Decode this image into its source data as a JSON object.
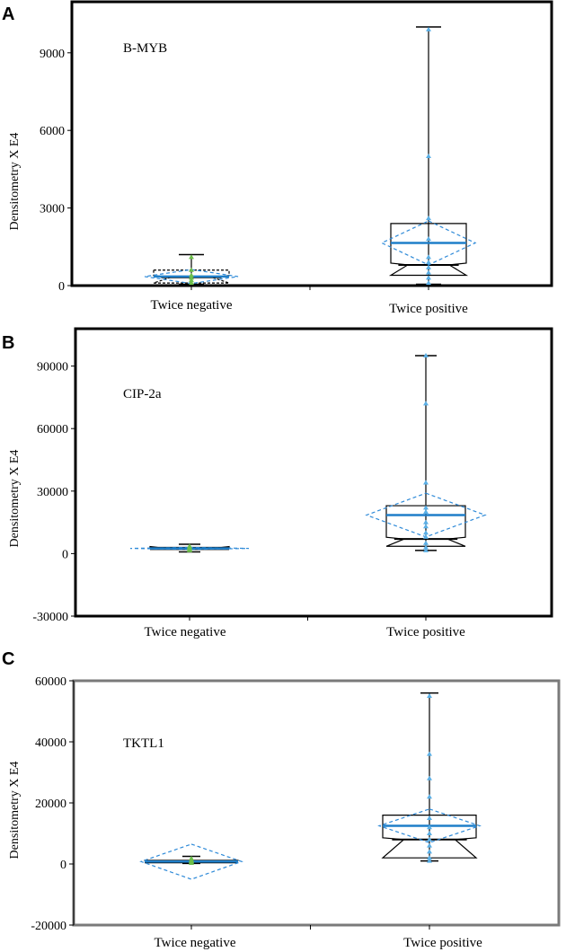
{
  "colors": {
    "box": "#000000",
    "mean": "#1f7fc9",
    "diamond": "#2e8ad8",
    "pos_points": "#5aafe6",
    "neg_points": "#6cbf4a"
  },
  "chart_data": [
    {
      "type": "boxplot",
      "panel": "A",
      "annotation": "B-MYB",
      "ylabel": "Densitometry X E4",
      "ylim": [
        0,
        10000
      ],
      "yticks": [
        0,
        3000,
        6000,
        9000
      ],
      "ytick_labels": [
        "0",
        "3000",
        "6000",
        "9000"
      ],
      "categories": [
        "Twice negative",
        "Twice positive"
      ],
      "groups": [
        {
          "name": "Twice negative",
          "min": 50,
          "q1": 100,
          "median": 320,
          "q3": 600,
          "max": 1200,
          "mean": 350,
          "ci_low": 80,
          "ci_high": 620,
          "points": [
            100,
            200,
            300,
            400,
            600,
            1100
          ]
        },
        {
          "name": "Twice positive",
          "min": 50,
          "q1": 400,
          "median": 800,
          "q3": 2400,
          "max": 10000,
          "mean": 1650,
          "ci_low": 800,
          "ci_high": 2500,
          "points": [
            100,
            300,
            500,
            700,
            900,
            1100,
            1800,
            2600,
            5000,
            9900
          ]
        }
      ]
    },
    {
      "type": "boxplot",
      "panel": "B",
      "annotation": "CIP-2a",
      "ylabel": "Densitometry X E4",
      "ylim": [
        -30000,
        95000
      ],
      "yticks": [
        -30000,
        0,
        30000,
        60000,
        90000
      ],
      "ytick_labels": [
        "-30000",
        "0",
        "30000",
        "60000",
        "90000"
      ],
      "categories": [
        "Twice negative",
        "Twice positive"
      ],
      "groups": [
        {
          "name": "Twice negative",
          "min": 800,
          "q1": 2000,
          "median": 2500,
          "q3": 3000,
          "max": 4500,
          "mean": 2500,
          "ci_low": 2000,
          "ci_high": 3000,
          "points": [
            1500,
            2000,
            2500,
            3000,
            3500
          ]
        },
        {
          "name": "Twice positive",
          "min": 1500,
          "q1": 3500,
          "median": 7000,
          "q3": 23000,
          "max": 95000,
          "mean": 18500,
          "ci_low": 8000,
          "ci_high": 29000,
          "points": [
            1500,
            3000,
            5000,
            8000,
            10000,
            13000,
            15000,
            20000,
            22000,
            34000,
            72000,
            95000
          ]
        }
      ]
    },
    {
      "type": "boxplot",
      "panel": "C",
      "annotation": "TKTL1",
      "ylabel": "Densitometry X E4",
      "ylim": [
        -20000,
        60000
      ],
      "yticks": [
        -20000,
        0,
        20000,
        40000,
        60000
      ],
      "ytick_labels": [
        "-20000",
        "0",
        "20000",
        "40000",
        "60000"
      ],
      "categories": [
        "Twice negative",
        "Twice positive"
      ],
      "groups": [
        {
          "name": "Twice negative",
          "min": 200,
          "q1": 400,
          "median": 600,
          "q3": 1200,
          "max": 2500,
          "mean": 800,
          "ci_low": -5000,
          "ci_high": 6500,
          "points": [
            300,
            600,
            900,
            1200,
            1800
          ]
        },
        {
          "name": "Twice positive",
          "min": 1000,
          "q1": 2000,
          "median": 8000,
          "q3": 16000,
          "max": 56000,
          "mean": 12500,
          "ci_low": 7000,
          "ci_high": 18000,
          "points": [
            1000,
            2000,
            4000,
            6000,
            8000,
            10000,
            12000,
            15000,
            22000,
            28000,
            36000,
            55000
          ]
        }
      ]
    }
  ]
}
